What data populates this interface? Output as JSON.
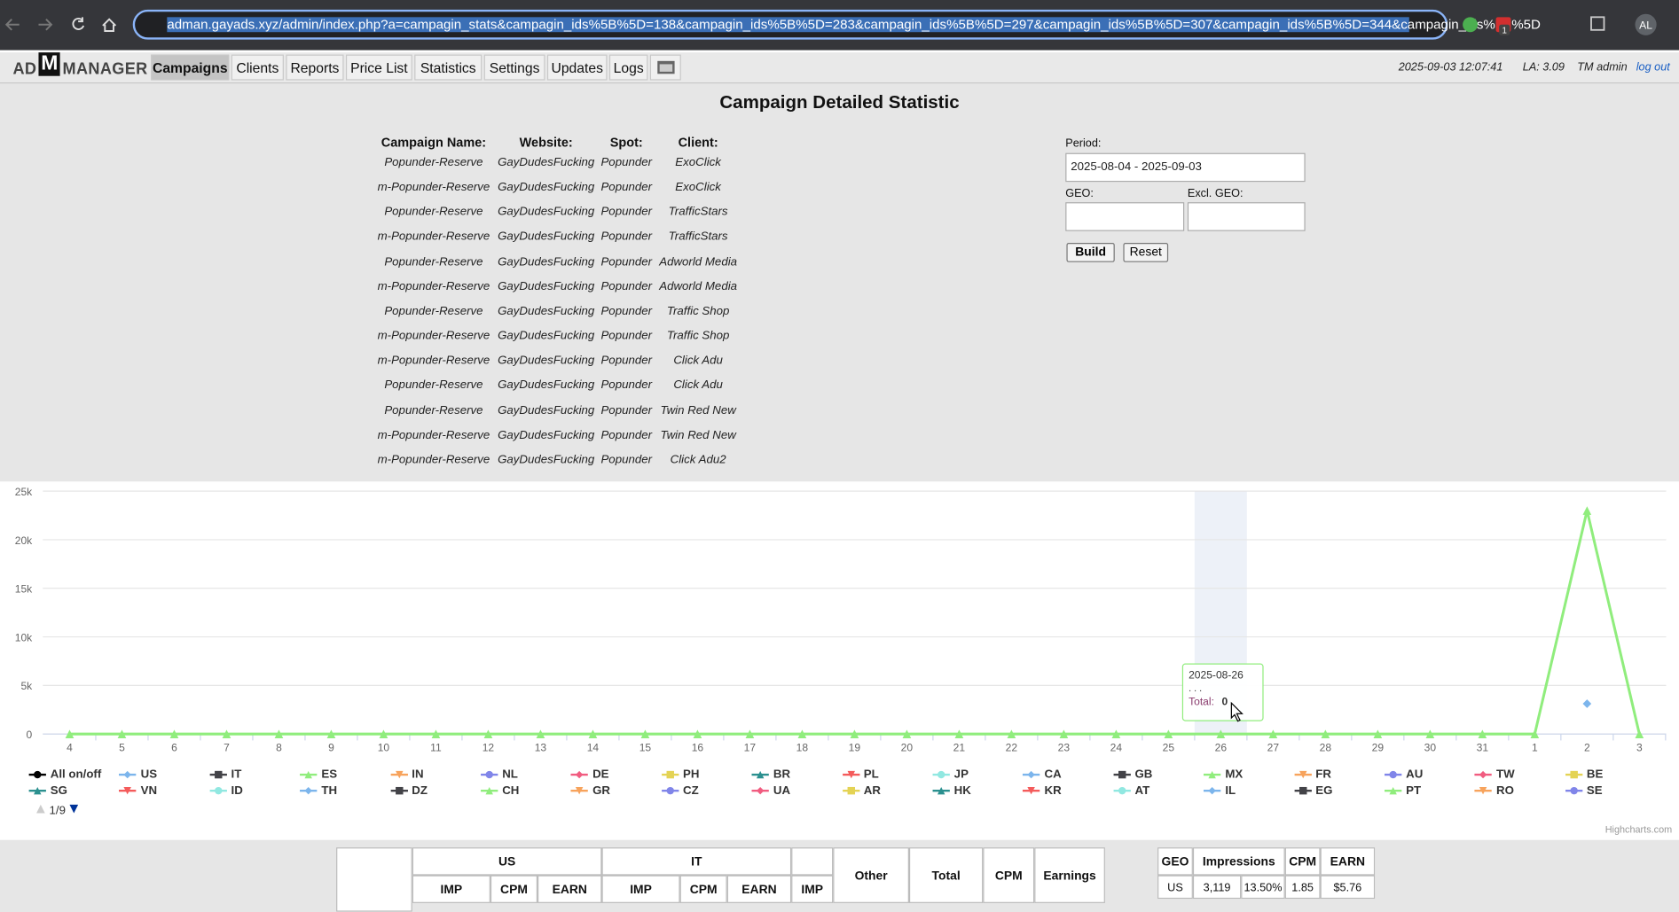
{
  "browser": {
    "url": "adman.gayads.xyz/admin/index.php?a=campagin_stats&campagin_ids%5B%5D=138&campagin_ids%5B%5D=283&campagin_ids%5B%5D=297&campagin_ids%5B%5D=307&campagin_ids%5B%5D=344&campagin_ids%5B%5D",
    "badge": "1",
    "avatar": "AL"
  },
  "header": {
    "logo": {
      "left": "AD",
      "mark": "M",
      "right": "MANAGER"
    },
    "menu": [
      "Campaigns",
      "Clients",
      "Reports",
      "Price List",
      "Statistics",
      "Settings",
      "Updates",
      "Logs"
    ],
    "datetime": "2025-09-03 12:07:41",
    "load": "LA: 3.09",
    "user": "TM admin",
    "logout": "log out"
  },
  "title": "Campaign Detailed Statistic",
  "campaigns": {
    "headers": [
      "Campaign Name:",
      "Website:",
      "Spot:",
      "Client:"
    ],
    "rows": [
      [
        "Popunder-Reserve",
        "GayDudesFucking",
        "Popunder",
        "ExoClick"
      ],
      [
        "m-Popunder-Reserve",
        "GayDudesFucking",
        "Popunder",
        "ExoClick"
      ],
      [
        "Popunder-Reserve",
        "GayDudesFucking",
        "Popunder",
        "TrafficStars"
      ],
      [
        "m-Popunder-Reserve",
        "GayDudesFucking",
        "Popunder",
        "TrafficStars"
      ],
      [
        "Popunder-Reserve",
        "GayDudesFucking",
        "Popunder",
        "Adworld Media"
      ],
      [
        "m-Popunder-Reserve",
        "GayDudesFucking",
        "Popunder",
        "Adworld Media"
      ],
      [
        "Popunder-Reserve",
        "GayDudesFucking",
        "Popunder",
        "Traffic Shop"
      ],
      [
        "m-Popunder-Reserve",
        "GayDudesFucking",
        "Popunder",
        "Traffic Shop"
      ],
      [
        "m-Popunder-Reserve",
        "GayDudesFucking",
        "Popunder",
        "Click Adu"
      ],
      [
        "Popunder-Reserve",
        "GayDudesFucking",
        "Popunder",
        "Click Adu"
      ],
      [
        "Popunder-Reserve",
        "GayDudesFucking",
        "Popunder",
        "Twin Red New"
      ],
      [
        "m-Popunder-Reserve",
        "GayDudesFucking",
        "Popunder",
        "Twin Red New"
      ],
      [
        "m-Popunder-Reserve",
        "GayDudesFucking",
        "Popunder",
        "Click Adu2"
      ]
    ]
  },
  "form": {
    "period_label": "Period:",
    "period_value": "2025-08-04 - 2025-09-03",
    "geo_label": "GEO:",
    "excl_geo_label": "Excl. GEO:",
    "build": "Build",
    "reset": "Reset"
  },
  "chart": {
    "type": "line",
    "categories": [
      "4",
      "5",
      "6",
      "7",
      "8",
      "9",
      "10",
      "11",
      "12",
      "13",
      "14",
      "15",
      "16",
      "17",
      "18",
      "19",
      "20",
      "21",
      "22",
      "23",
      "24",
      "25",
      "26",
      "27",
      "28",
      "29",
      "30",
      "31",
      "1",
      "2",
      "3"
    ],
    "series": [
      {
        "name": "US",
        "color": "#7cb5ec",
        "values": [
          null,
          null,
          null,
          null,
          null,
          null,
          null,
          null,
          null,
          null,
          null,
          null,
          null,
          null,
          null,
          null,
          null,
          null,
          null,
          null,
          null,
          null,
          null,
          null,
          null,
          null,
          null,
          null,
          null,
          3119,
          null
        ]
      },
      {
        "name": "Total",
        "color": "#90ed7d",
        "values": [
          0,
          0,
          0,
          0,
          0,
          0,
          0,
          0,
          0,
          0,
          0,
          0,
          0,
          0,
          0,
          0,
          0,
          0,
          0,
          0,
          0,
          0,
          0,
          0,
          0,
          0,
          0,
          0,
          0,
          23000,
          0
        ]
      }
    ],
    "ylim": [
      0,
      25000
    ],
    "yticks": [
      0,
      {
        "value": 5000,
        "label": "5k"
      },
      {
        "value": 10000,
        "label": "10k"
      },
      {
        "value": 15000,
        "label": "15k"
      },
      {
        "value": 20000,
        "label": "20k"
      },
      {
        "value": 25000,
        "label": "25k"
      }
    ],
    "grid": true,
    "tooltip": {
      "date": "2025-08-26",
      "ellipsis": ". . .",
      "label": "Total:"
    },
    "legend": {
      "toggle": "All on/off",
      "items": [
        {
          "name": "US",
          "color": "#7cb5ec"
        },
        {
          "name": "IT",
          "color": "#434348"
        },
        {
          "name": "ES",
          "color": "#90ed7d"
        },
        {
          "name": "IN",
          "color": "#f7a35c"
        },
        {
          "name": "NL",
          "color": "#8085e9"
        },
        {
          "name": "DE",
          "color": "#f15c80"
        },
        {
          "name": "PH",
          "color": "#e4d354"
        },
        {
          "name": "BR",
          "color": "#2b908f"
        },
        {
          "name": "PL",
          "color": "#f45b5b"
        },
        {
          "name": "JP",
          "color": "#91e8e1"
        },
        {
          "name": "CA",
          "color": "#7cb5ec"
        },
        {
          "name": "GB",
          "color": "#434348"
        },
        {
          "name": "MX",
          "color": "#90ed7d"
        },
        {
          "name": "FR",
          "color": "#f7a35c"
        },
        {
          "name": "AU",
          "color": "#8085e9"
        },
        {
          "name": "TW",
          "color": "#f15c80"
        },
        {
          "name": "BE",
          "color": "#e4d354"
        },
        {
          "name": "SG",
          "color": "#2b908f"
        },
        {
          "name": "VN",
          "color": "#f45b5b"
        },
        {
          "name": "ID",
          "color": "#91e8e1"
        },
        {
          "name": "TH",
          "color": "#7cb5ec"
        },
        {
          "name": "DZ",
          "color": "#434348"
        },
        {
          "name": "CH",
          "color": "#90ed7d"
        },
        {
          "name": "GR",
          "color": "#f7a35c"
        },
        {
          "name": "CZ",
          "color": "#8085e9"
        },
        {
          "name": "UA",
          "color": "#f15c80"
        },
        {
          "name": "AR",
          "color": "#e4d354"
        },
        {
          "name": "HK",
          "color": "#2b908f"
        },
        {
          "name": "KR",
          "color": "#f45b5b"
        },
        {
          "name": "AT",
          "color": "#91e8e1"
        },
        {
          "name": "IL",
          "color": "#7cb5ec"
        },
        {
          "name": "EG",
          "color": "#434348"
        },
        {
          "name": "PT",
          "color": "#90ed7d"
        },
        {
          "name": "RO",
          "color": "#f7a35c"
        },
        {
          "name": "SE",
          "color": "#8085e9"
        }
      ],
      "page": "1/9"
    },
    "credit": "Highcharts.com"
  },
  "stats_table": {
    "groups": [
      "US",
      "IT"
    ],
    "sub_headers": [
      "IMP",
      "CPM",
      "EARN",
      "IMP",
      "CPM",
      "EARN",
      "IMP"
    ],
    "headers": [
      "Other",
      "Total",
      "CPM",
      "Earnings"
    ]
  },
  "geo_table": {
    "headers": [
      "GEO",
      "Impressions",
      "CPM",
      "EARN"
    ],
    "rows": [
      [
        "US",
        "3,119",
        "13.50%",
        "1.85",
        "$5.76"
      ]
    ]
  }
}
